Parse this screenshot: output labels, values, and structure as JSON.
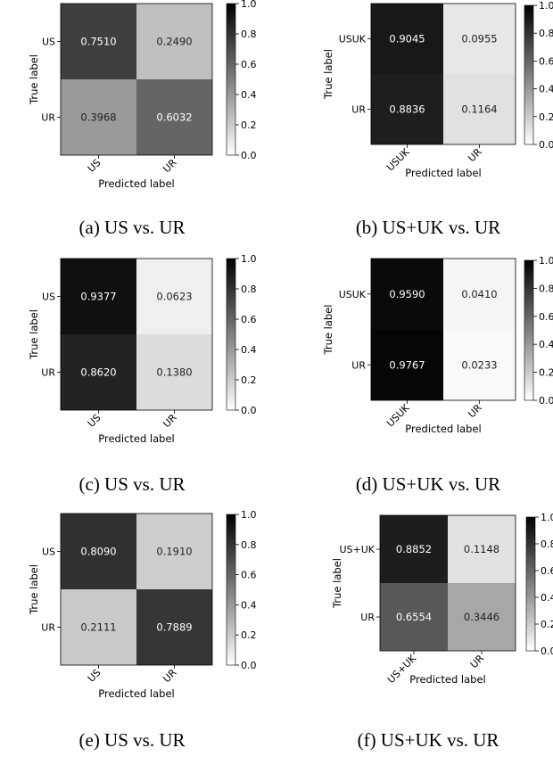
{
  "chart_data": [
    {
      "type": "heatmap",
      "caption": "(a) US vs. UR",
      "rows": [
        "US",
        "UR"
      ],
      "cols": [
        "US",
        "UR"
      ],
      "values": [
        [
          0.751,
          0.249
        ],
        [
          0.3968,
          0.6032
        ]
      ],
      "labels": [
        [
          "0.7510",
          "0.2490"
        ],
        [
          "0.3968",
          "0.6032"
        ]
      ],
      "xlabel": "Predicted label",
      "ylabel": "True label",
      "colorbar": {
        "range": [
          0,
          1
        ],
        "ticks": [
          "0.0",
          "0.2",
          "0.4",
          "0.6",
          "0.8",
          "1.0"
        ],
        "colormap": "Greys"
      }
    },
    {
      "type": "heatmap",
      "caption": "(b) US+UK vs. UR",
      "rows": [
        "USUK",
        "UR"
      ],
      "cols": [
        "USUK",
        "UR"
      ],
      "values": [
        [
          0.9045,
          0.0955
        ],
        [
          0.8836,
          0.1164
        ]
      ],
      "labels": [
        [
          "0.9045",
          "0.0955"
        ],
        [
          "0.8836",
          "0.1164"
        ]
      ],
      "xlabel": "Predicted label",
      "ylabel": "True label",
      "colorbar": {
        "range": [
          0,
          1
        ],
        "ticks": [
          "0.0",
          "0.2",
          "0.4",
          "0.6",
          "0.8",
          "1.0"
        ],
        "colormap": "Greys"
      }
    },
    {
      "type": "heatmap",
      "caption": "(c) US vs. UR",
      "rows": [
        "US",
        "UR"
      ],
      "cols": [
        "US",
        "UR"
      ],
      "values": [
        [
          0.9377,
          0.0623
        ],
        [
          0.862,
          0.138
        ]
      ],
      "labels": [
        [
          "0.9377",
          "0.0623"
        ],
        [
          "0.8620",
          "0.1380"
        ]
      ],
      "xlabel": "Predicted label",
      "ylabel": "True label",
      "colorbar": {
        "range": [
          0,
          1
        ],
        "ticks": [
          "0.0",
          "0.2",
          "0.4",
          "0.6",
          "0.8",
          "1.0"
        ],
        "colormap": "Greys"
      }
    },
    {
      "type": "heatmap",
      "caption": "(d) US+UK vs. UR",
      "rows": [
        "USUK",
        "UR"
      ],
      "cols": [
        "USUK",
        "UR"
      ],
      "values": [
        [
          0.959,
          0.041
        ],
        [
          0.9767,
          0.0233
        ]
      ],
      "labels": [
        [
          "0.9590",
          "0.0410"
        ],
        [
          "0.9767",
          "0.0233"
        ]
      ],
      "xlabel": "Predicted label",
      "ylabel": "True label",
      "colorbar": {
        "range": [
          0,
          1
        ],
        "ticks": [
          "0.0",
          "0.2",
          "0.4",
          "0.6",
          "0.8",
          "1.0"
        ],
        "colormap": "Greys"
      }
    },
    {
      "type": "heatmap",
      "caption": "(e) US vs. UR",
      "rows": [
        "US",
        "UR"
      ],
      "cols": [
        "US",
        "UR"
      ],
      "values": [
        [
          0.809,
          0.191
        ],
        [
          0.2111,
          0.7889
        ]
      ],
      "labels": [
        [
          "0.8090",
          "0.1910"
        ],
        [
          "0.2111",
          "0.7889"
        ]
      ],
      "xlabel": "Predicted label",
      "ylabel": "True label",
      "colorbar": {
        "range": [
          0,
          1
        ],
        "ticks": [
          "0.0",
          "0.2",
          "0.4",
          "0.6",
          "0.8",
          "1.0"
        ],
        "colormap": "Greys"
      }
    },
    {
      "type": "heatmap",
      "caption": "(f) US+UK vs. UR",
      "rows": [
        "US+UK",
        "UR"
      ],
      "cols": [
        "US+UK",
        "UR"
      ],
      "values": [
        [
          0.8852,
          0.1148
        ],
        [
          0.6554,
          0.3446
        ]
      ],
      "labels": [
        [
          "0.8852",
          "0.1148"
        ],
        [
          "0.6554",
          "0.3446"
        ]
      ],
      "xlabel": "Predicted label",
      "ylabel": "True label",
      "colorbar": {
        "range": [
          0,
          1
        ],
        "ticks": [
          "0.0",
          "0.2",
          "0.4",
          "0.6",
          "0.8",
          "1.0"
        ],
        "colormap": "Greys"
      }
    }
  ]
}
